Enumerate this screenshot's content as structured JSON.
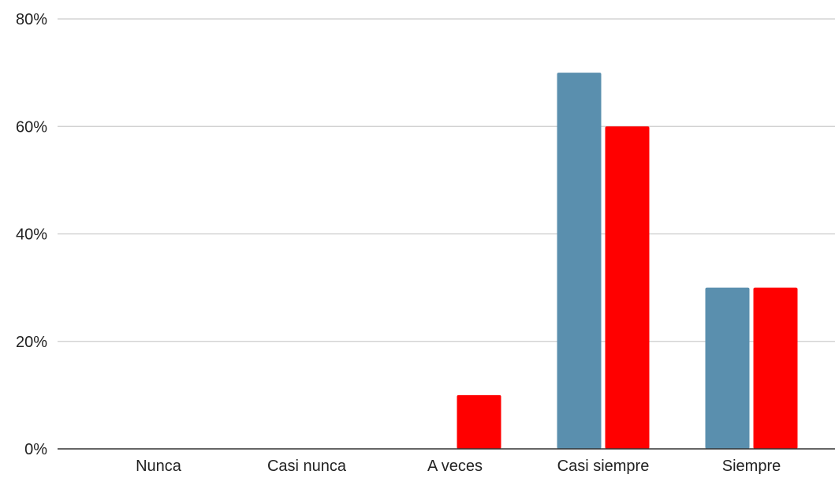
{
  "chart_data": {
    "type": "bar",
    "title": "",
    "xlabel": "",
    "ylabel": "",
    "categories": [
      "Nunca",
      "Casi nunca",
      "A veces",
      "Casi siempre",
      "Siempre"
    ],
    "series": [
      {
        "color": "#5a8fae",
        "values": [
          0,
          0,
          0,
          70,
          30
        ]
      },
      {
        "color": "#ff0000",
        "values": [
          0,
          0,
          10,
          60,
          30
        ]
      }
    ],
    "ylim": [
      0,
      80
    ],
    "yticks": [
      0,
      20,
      40,
      60,
      80
    ],
    "ytick_labels": [
      "0%",
      "20%",
      "40%",
      "60%",
      "80%"
    ],
    "grid": true,
    "legend": "none"
  }
}
